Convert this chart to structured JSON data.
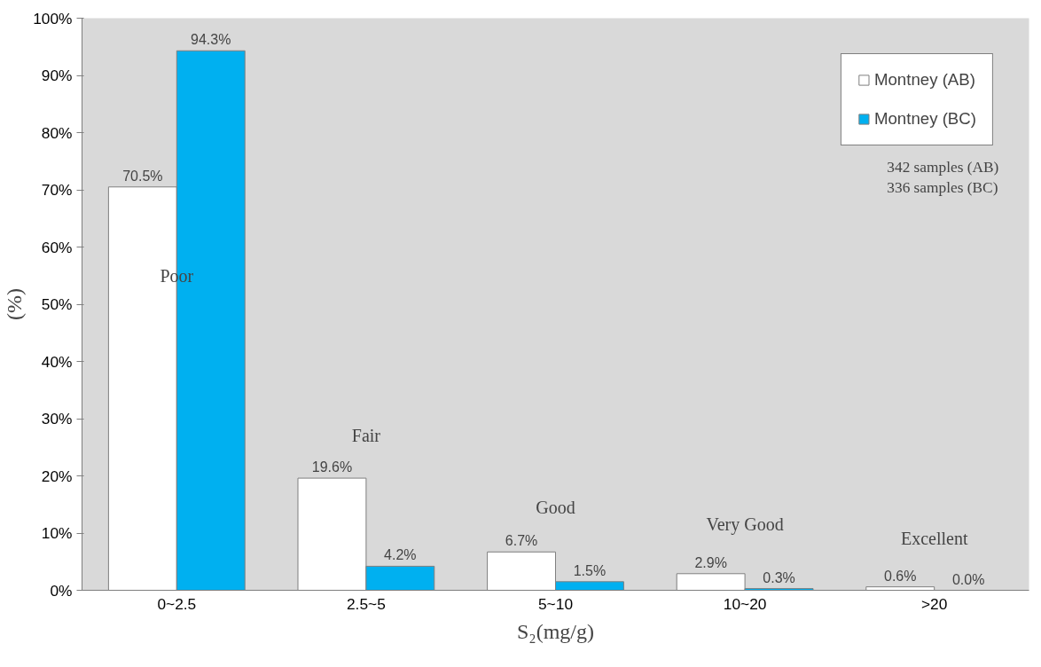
{
  "chart_data": {
    "type": "bar",
    "categories": [
      "0~2.5",
      "2.5~5",
      "5~10",
      "10~20",
      ">20"
    ],
    "xlabel": "S₂(mg/g)",
    "ylabel": "(%)",
    "ylim": [
      0,
      100
    ],
    "yticks": [
      {
        "value": 0,
        "label": "0%"
      },
      {
        "value": 10,
        "label": "10%"
      },
      {
        "value": 20,
        "label": "20%"
      },
      {
        "value": 30,
        "label": "30%"
      },
      {
        "value": 40,
        "label": "40%"
      },
      {
        "value": 50,
        "label": "50%"
      },
      {
        "value": 60,
        "label": "60%"
      },
      {
        "value": 70,
        "label": "70%"
      },
      {
        "value": 80,
        "label": "80%"
      },
      {
        "value": 90,
        "label": "90%"
      },
      {
        "value": 100,
        "label": "100%"
      }
    ],
    "series": [
      {
        "name": "Montney (AB)",
        "color": "#ffffff",
        "values": [
          70.5,
          19.6,
          6.7,
          2.9,
          0.6
        ],
        "value_labels": [
          "70.5%",
          "19.6%",
          "6.7%",
          "2.9%",
          "0.6%"
        ]
      },
      {
        "name": "Montney (BC)",
        "color": "#00b0f0",
        "values": [
          94.3,
          4.2,
          1.5,
          0.3,
          0.0
        ],
        "value_labels": [
          "94.3%",
          "4.2%",
          "1.5%",
          "0.3%",
          "0.0%"
        ]
      }
    ],
    "annotations": [
      "Poor",
      "Fair",
      "Good",
      "Very Good",
      "Excellent",
      "342 samples (AB)",
      "336 samples (BC)"
    ],
    "grid": false,
    "legend": "top right"
  }
}
